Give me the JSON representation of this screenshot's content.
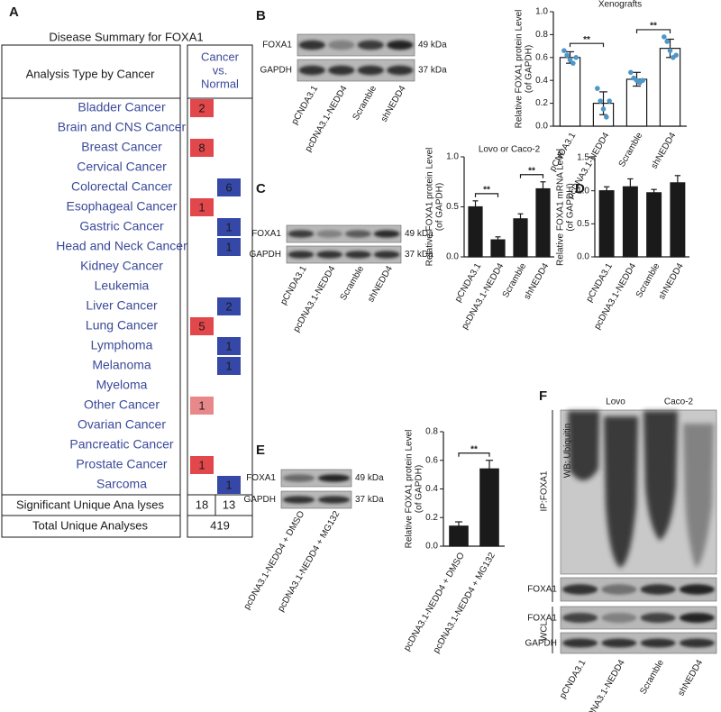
{
  "panel_labels": [
    "A",
    "B",
    "C",
    "D",
    "E",
    "F"
  ],
  "table": {
    "title": "Disease Summary for FOXA1",
    "header_left": "Analysis Type by Cancer",
    "header_right": [
      "Cancer",
      "vs.",
      "Normal"
    ],
    "rows": [
      {
        "name": "Bladder Cancer",
        "up": 2,
        "down": null,
        "up_color": "#e2474c"
      },
      {
        "name": "Brain and CNS Cancer",
        "up": null,
        "down": null
      },
      {
        "name": "Breast Cancer",
        "up": 8,
        "down": null,
        "up_color": "#e2474c"
      },
      {
        "name": "Cervical Cancer",
        "up": null,
        "down": null
      },
      {
        "name": "Colorectal Cancer",
        "up": null,
        "down": 6,
        "down_color": "#3548a8"
      },
      {
        "name": "Esophageal Cancer",
        "up": 1,
        "down": null,
        "up_color": "#e2474c"
      },
      {
        "name": "Gastric Cancer",
        "up": null,
        "down": 1,
        "down_color": "#3548a8"
      },
      {
        "name": "Head and Neck Cancer",
        "up": null,
        "down": 1,
        "down_color": "#3548a8"
      },
      {
        "name": "Kidney Cancer",
        "up": null,
        "down": null
      },
      {
        "name": "Leukemia",
        "up": null,
        "down": null
      },
      {
        "name": "Liver Cancer",
        "up": null,
        "down": 2,
        "down_color": "#3548a8"
      },
      {
        "name": "Lung Cancer",
        "up": 5,
        "down": null,
        "up_color": "#e2474c"
      },
      {
        "name": "Lymphoma",
        "up": null,
        "down": 1,
        "down_color": "#3548a8"
      },
      {
        "name": "Melanoma",
        "up": null,
        "down": 1,
        "down_color": "#3548a8"
      },
      {
        "name": "Myeloma",
        "up": null,
        "down": null
      },
      {
        "name": "Other Cancer",
        "up": 1,
        "down": null,
        "up_color": "#e8888b"
      },
      {
        "name": "Ovarian Cancer",
        "up": null,
        "down": null
      },
      {
        "name": "Pancreatic Cancer",
        "up": null,
        "down": null
      },
      {
        "name": "Prostate Cancer",
        "up": 1,
        "down": null,
        "up_color": "#e2474c"
      },
      {
        "name": "Sarcoma",
        "up": null,
        "down": 1,
        "down_color": "#3548a8"
      }
    ],
    "significant_label": "Significant Unique Ana lyses",
    "significant_up": 18,
    "significant_down": 13,
    "total_label": "Total Unique Analyses",
    "total": 419
  },
  "blots": [
    {
      "rows": [
        "FOXA1",
        "GAPDH"
      ],
      "sizes": [
        "49 kDa",
        "37 kDa"
      ],
      "lanes": [
        "pCNDA3.1",
        "pcDNA3.1-NEDD4",
        "Scramble",
        "shNEDD4"
      ]
    },
    {
      "rows": [
        "FOXA1",
        "GAPDH"
      ],
      "sizes": [
        "49 kDa",
        "37 kDa"
      ],
      "lanes": [
        "pCNDA3.1",
        "pcDNA3.1-NEDD4",
        "Scramble",
        "shNEDD4"
      ]
    },
    {
      "rows": [
        "FOXA1",
        "GAPDH"
      ],
      "sizes": [
        "49 kDa",
        "37 kDa"
      ],
      "lanes": [
        "pcDNA3.1-NEDD4 + DMSO",
        "pcDNA3.1-NEDD4 + MG132"
      ]
    }
  ],
  "ip_blot": {
    "groups": [
      "Lovo",
      "Caco-2"
    ],
    "ip": "IP:FOXA1",
    "wb": "WB: Ubiquitin",
    "ip_row": "FOXA1",
    "wcl": "WCL",
    "wcl_rows": [
      "FOXA1",
      "GAPDH"
    ],
    "lanes": [
      "pCNDA3.1",
      "pcDNA3.1-NEDD4",
      "Scramble",
      "shNEDD4"
    ]
  },
  "chart_data": [
    {
      "type": "bar",
      "title": "Xenografts",
      "y_label": [
        "Relative FOXA1 protein Level",
        "(of GAPDH)"
      ],
      "categories": [
        "pCNDA3.1",
        "pcDNA3.1-NEDD4",
        "Scramble",
        "shNEDD4"
      ],
      "values": [
        0.6,
        0.2,
        0.41,
        0.68
      ],
      "errors": [
        0.05,
        0.1,
        0.06,
        0.08
      ],
      "points": [
        [
          0.66,
          0.62,
          0.58,
          0.55,
          0.6
        ],
        [
          0.33,
          0.22,
          0.15,
          0.08,
          0.22
        ],
        [
          0.47,
          0.42,
          0.4,
          0.38,
          0.4
        ],
        [
          0.78,
          0.74,
          0.66,
          0.6,
          0.62
        ]
      ],
      "color": "#ffffff",
      "point_color": "#4f97c9",
      "ylim": [
        0,
        1
      ],
      "yticks": [
        {
          "value": 0,
          "label": "0.0"
        },
        0.2,
        0.4,
        0.6,
        0.8,
        {
          "value": 1,
          "label": "1.0"
        }
      ],
      "annotations": [
        "**",
        "**"
      ]
    },
    {
      "type": "bar",
      "title": "Lovo or Caco-2",
      "y_label": [
        "Relative FOXA1 protein Level",
        "(of GAPDH)"
      ],
      "categories": [
        "pCNDA3.1",
        "pcDNA3.1-NEDD4",
        "Scramble",
        "shNEDD4"
      ],
      "values": [
        0.5,
        0.17,
        0.38,
        0.68
      ],
      "errors": [
        0.06,
        0.03,
        0.05,
        0.07
      ],
      "color": "#1a1a1a",
      "ylim": [
        0,
        1
      ],
      "yticks": [
        {
          "value": 0,
          "label": "0.0"
        },
        0.5,
        {
          "value": 1,
          "label": "1.0"
        }
      ],
      "annotations": [
        "**",
        "**"
      ]
    },
    {
      "type": "bar",
      "y_label": [
        "Relative FOXA1 mRNA Level",
        "(of GAPDH)"
      ],
      "categories": [
        "pCNDA3.1",
        "pcDNA3.1-NEDD4",
        "Scramble",
        "shNEDD4"
      ],
      "values": [
        1.0,
        1.06,
        0.97,
        1.12
      ],
      "errors": [
        0.06,
        0.12,
        0.05,
        0.11
      ],
      "color": "#1a1a1a",
      "ylim": [
        0,
        1.5
      ],
      "yticks": [
        {
          "value": 0,
          "label": "0.0"
        },
        0.5,
        {
          "value": 1,
          "label": "1.0"
        },
        1.5
      ]
    },
    {
      "type": "bar",
      "y_label": [
        "Relative FOXA1 protein Level",
        "(of GAPDH)"
      ],
      "categories": [
        "pcDNA3.1-NEDD4 + DMSO",
        "pcDNA3.1-NEDD4 + MG132"
      ],
      "values": [
        0.14,
        0.54
      ],
      "errors": [
        0.03,
        0.06
      ],
      "color": "#1a1a1a",
      "ylim": [
        0,
        0.8
      ],
      "yticks": [
        {
          "value": 0,
          "label": "0.0"
        },
        0.2,
        0.4,
        0.6,
        0.8
      ],
      "annotations": [
        "**"
      ]
    }
  ]
}
